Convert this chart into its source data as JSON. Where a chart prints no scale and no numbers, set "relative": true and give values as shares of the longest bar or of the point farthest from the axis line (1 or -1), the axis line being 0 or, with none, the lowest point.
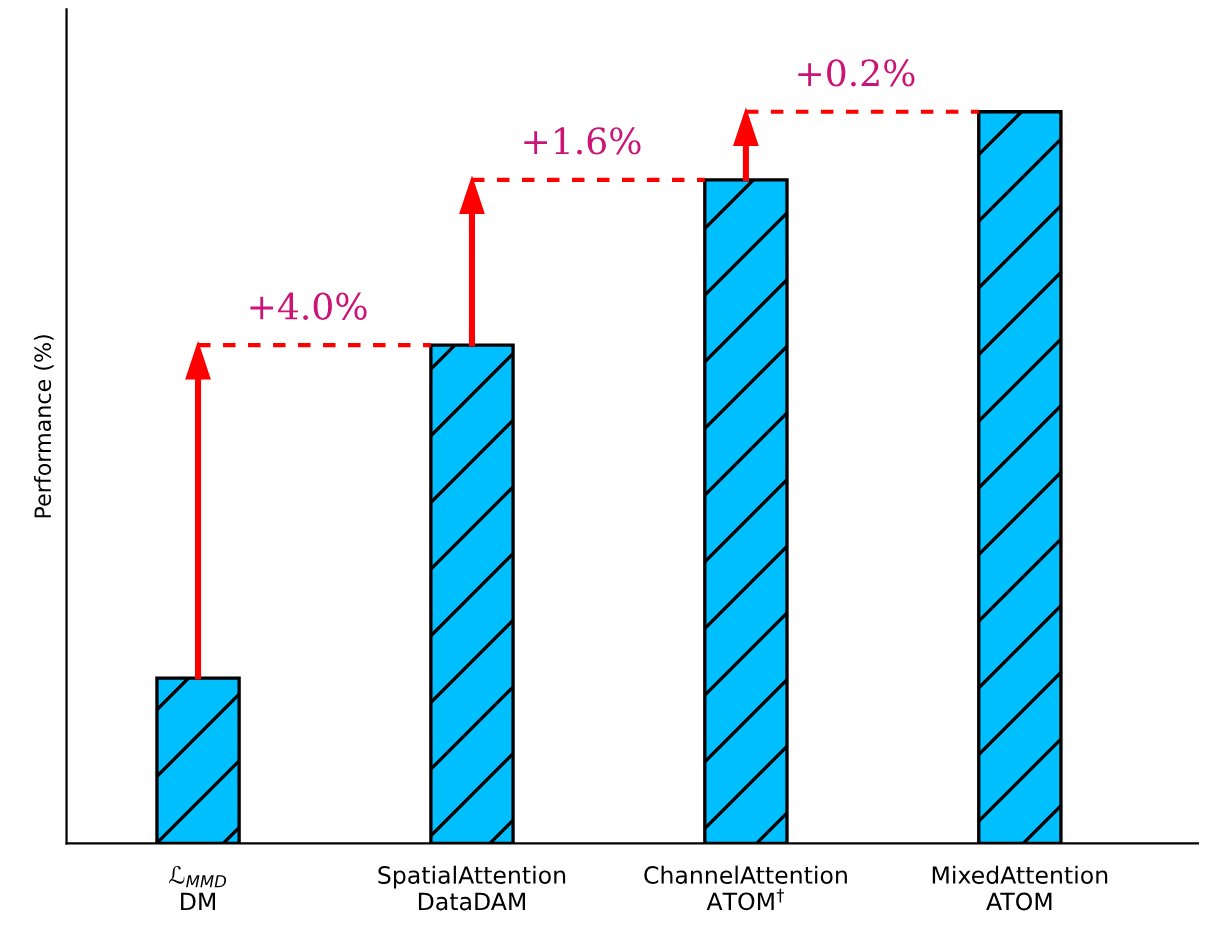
{
  "chart_data": {
    "type": "bar",
    "relative": true,
    "ylabel": "Performance (%)",
    "categories": [
      "ℒ$_{MMD}$\nDM",
      "SpatialAttention\nDataDAM",
      "ChannelAttention\nATOM$^{†}$",
      "MixedAttention\nATOM"
    ],
    "values": [
      0.226,
      0.681,
      0.907,
      1
    ],
    "color": "#00bfff",
    "ref_lines": [
      {
        "axis": "y",
        "value": 0.681,
        "color": "#ff0000",
        "line_style": "dashed"
      },
      {
        "axis": "y",
        "value": 0.907,
        "color": "#ff0000",
        "line_style": "dashed"
      },
      {
        "axis": "y",
        "value": 1,
        "color": "#ff0000",
        "line_style": "dashed"
      }
    ],
    "annotations": [
      "+4.0%",
      "+1.6%",
      "+0.2%"
    ],
    "grid": false,
    "legend": false
  }
}
